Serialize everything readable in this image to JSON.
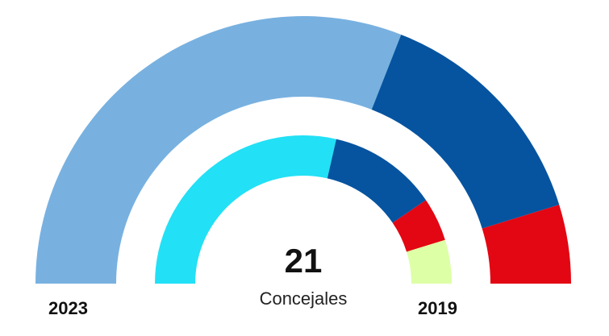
{
  "chart_data": {
    "type": "pie",
    "subtype": "semicircle-donut",
    "total": "21",
    "total_label": "Concejales",
    "rings": [
      {
        "name": "2023",
        "position": "outer",
        "values": [
          13,
          6,
          2
        ],
        "colors": [
          "#78b1e0",
          "#0654a0",
          "#e30613"
        ]
      },
      {
        "name": "2019",
        "position": "inner",
        "values": [
          12,
          5,
          2,
          2
        ],
        "colors": [
          "#22e0f5",
          "#0654a0",
          "#e30613",
          "#ddffa6"
        ]
      }
    ]
  }
}
